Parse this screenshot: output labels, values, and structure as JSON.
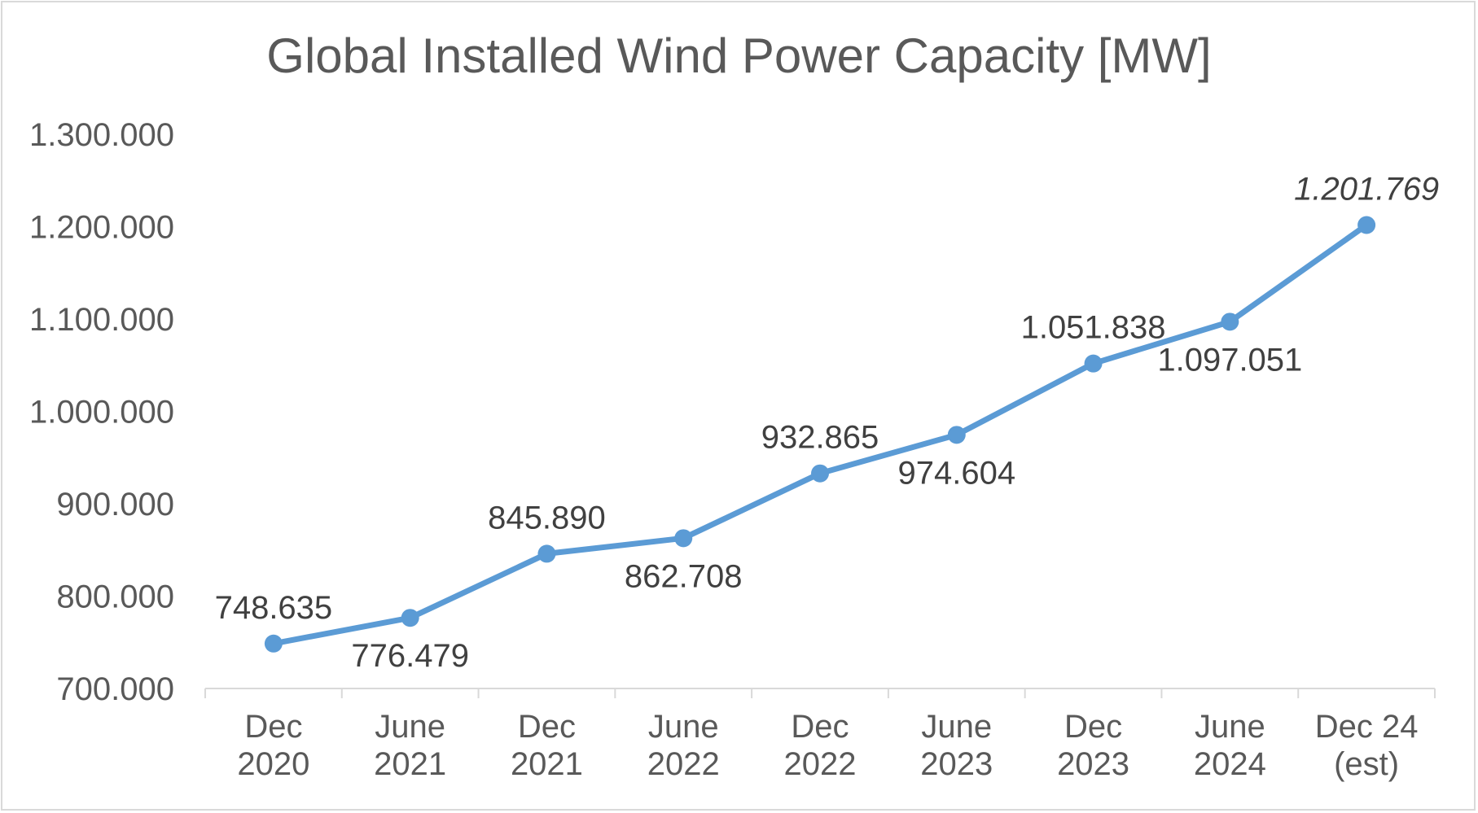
{
  "chart_data": {
    "type": "line",
    "title": "Global Installed Wind Power Capacity [MW]",
    "xlabel": "",
    "ylabel": "",
    "categories": [
      [
        "Dec",
        "2020"
      ],
      [
        "June",
        "2021"
      ],
      [
        "Dec",
        "2021"
      ],
      [
        "June",
        "2022"
      ],
      [
        "Dec",
        "2022"
      ],
      [
        "June",
        "2023"
      ],
      [
        "Dec",
        "2023"
      ],
      [
        "June",
        "2024"
      ],
      [
        "Dec 24",
        "(est)"
      ]
    ],
    "values": [
      748635,
      776479,
      845890,
      862708,
      932865,
      974604,
      1051838,
      1097051,
      1201769
    ],
    "data_labels": [
      "748.635",
      "776.479",
      "845.890",
      "862.708",
      "932.865",
      "974.604",
      "1.051.838",
      "1.097.051",
      "1.201.769"
    ],
    "label_positions": [
      "above",
      "below",
      "above",
      "below",
      "above",
      "below",
      "above",
      "below",
      "above"
    ],
    "estimated_index": 8,
    "ylim": [
      700000,
      1300000
    ],
    "yticks": [
      700000,
      800000,
      900000,
      1000000,
      1100000,
      1200000,
      1300000
    ],
    "ytick_labels": [
      "700.000",
      "800.000",
      "900.000",
      "1.000.000",
      "1.100.000",
      "1.200.000",
      "1.300.000"
    ],
    "grid": false,
    "legend": "none",
    "colors": {
      "line": "#5b9bd5",
      "axis": "#d9d9d9",
      "text": "#595959",
      "data_label": "#404040"
    }
  }
}
